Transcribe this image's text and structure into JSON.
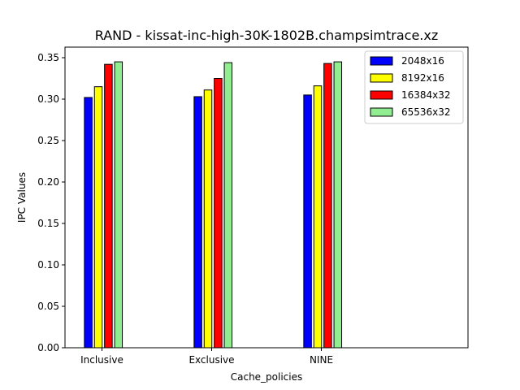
{
  "chart_data": {
    "type": "bar",
    "title": "RAND - kissat-inc-high-30K-1802B.champsimtrace.xz",
    "xlabel": "Cache_policies",
    "ylabel": "IPC Values",
    "categories": [
      "Inclusive",
      "Exclusive",
      "NINE"
    ],
    "ylim": [
      0,
      0.35
    ],
    "yticks": [
      "0.00",
      "0.05",
      "0.10",
      "0.15",
      "0.20",
      "0.25",
      "0.30",
      "0.35"
    ],
    "grid": false,
    "legend_position": "top-right",
    "series": [
      {
        "name": "2048x16",
        "color": "#0000ff",
        "values": [
          0.302,
          0.303,
          0.305
        ]
      },
      {
        "name": "8192x16",
        "color": "#ffff00",
        "values": [
          0.315,
          0.311,
          0.316
        ]
      },
      {
        "name": "16384x32",
        "color": "#ff0000",
        "values": [
          0.342,
          0.325,
          0.343
        ]
      },
      {
        "name": "65536x32",
        "color": "#90ee90",
        "values": [
          0.345,
          0.344,
          0.345
        ]
      }
    ]
  }
}
